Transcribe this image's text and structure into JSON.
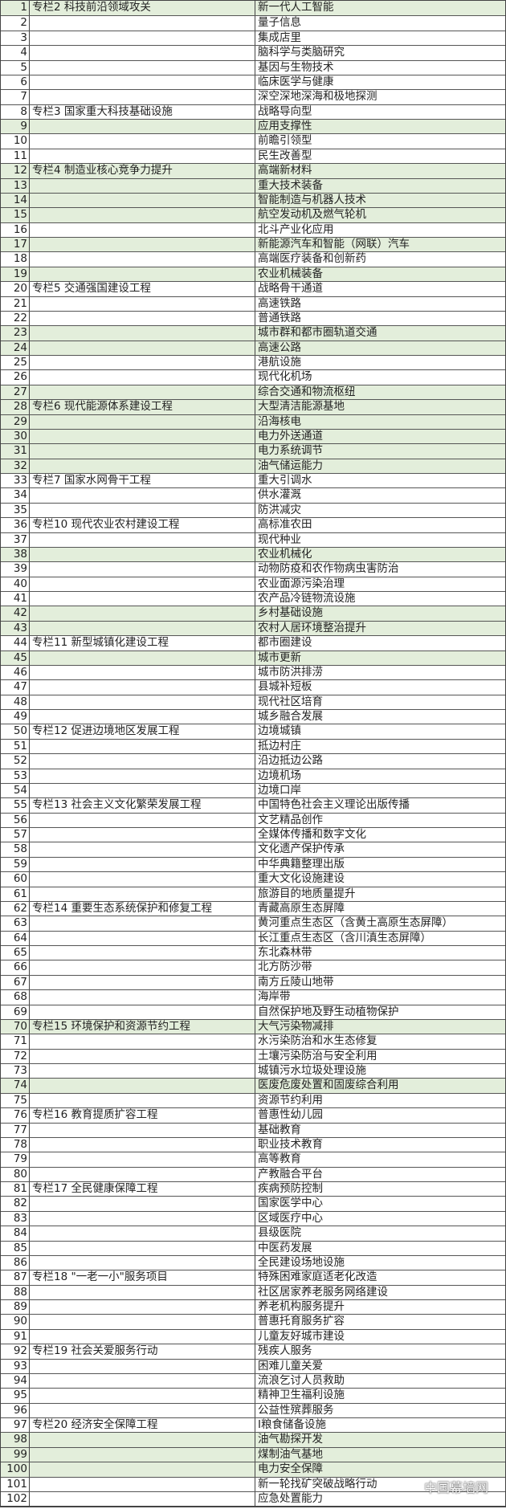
{
  "colors": {
    "highlight": "#e3eedb",
    "grid": "#444444"
  },
  "watermark": {
    "text": "中国幕墙网",
    "icon": "wechat-icon"
  },
  "rows": [
    {
      "n": "1",
      "b": "专栏2 科技前沿领域攻关",
      "c": "新一代人工智能",
      "hl": true
    },
    {
      "n": "2",
      "b": "",
      "c": "量子信息",
      "hl": false
    },
    {
      "n": "3",
      "b": "",
      "c": "集成店里",
      "hl": false
    },
    {
      "n": "4",
      "b": "",
      "c": "脑科学与类脑研究",
      "hl": false
    },
    {
      "n": "5",
      "b": "",
      "c": "基因与生物技术",
      "hl": false
    },
    {
      "n": "6",
      "b": "",
      "c": "临床医学与健康",
      "hl": false
    },
    {
      "n": "7",
      "b": "",
      "c": "深空深地深海和极地探测",
      "hl": false
    },
    {
      "n": "8",
      "b": "专栏3 国家重大科技基础设施",
      "c": "战略导向型",
      "hl": false
    },
    {
      "n": "9",
      "b": "",
      "c": "应用支撑性",
      "hl": true
    },
    {
      "n": "10",
      "b": "",
      "c": "前瞻引领型",
      "hl": false
    },
    {
      "n": "11",
      "b": "",
      "c": "民生改善型",
      "hl": false
    },
    {
      "n": "12",
      "b": "专栏4 制造业核心竞争力提升",
      "c": "高端新材料",
      "hl": true
    },
    {
      "n": "13",
      "b": "",
      "c": "重大技术装备",
      "hl": true
    },
    {
      "n": "14",
      "b": "",
      "c": "智能制造与机器人技术",
      "hl": true
    },
    {
      "n": "15",
      "b": "",
      "c": "航空发动机及燃气轮机",
      "hl": true
    },
    {
      "n": "16",
      "b": "",
      "c": "北斗产业化应用",
      "hl": false
    },
    {
      "n": "17",
      "b": "",
      "c": "新能源汽车和智能（网联）汽车",
      "hl": true
    },
    {
      "n": "18",
      "b": "",
      "c": "高端医疗装备和创新药",
      "hl": false
    },
    {
      "n": "19",
      "b": "",
      "c": "农业机械装备",
      "hl": true
    },
    {
      "n": "20",
      "b": "专栏5 交通强国建设工程",
      "c": "战略骨干通道",
      "hl": false
    },
    {
      "n": "21",
      "b": "",
      "c": "高速铁路",
      "hl": false
    },
    {
      "n": "22",
      "b": "",
      "c": "普通铁路",
      "hl": false
    },
    {
      "n": "23",
      "b": "",
      "c": "城市群和都市圈轨道交通",
      "hl": true
    },
    {
      "n": "24",
      "b": "",
      "c": "高速公路",
      "hl": true
    },
    {
      "n": "25",
      "b": "",
      "c": "港航设施",
      "hl": false
    },
    {
      "n": "26",
      "b": "",
      "c": "现代化机场",
      "hl": false
    },
    {
      "n": "27",
      "b": "",
      "c": "综合交通和物流枢纽",
      "hl": true
    },
    {
      "n": "28",
      "b": "专栏6 现代能源体系建设工程",
      "c": "大型清洁能源基地",
      "hl": true
    },
    {
      "n": "29",
      "b": "",
      "c": "沿海核电",
      "hl": true
    },
    {
      "n": "30",
      "b": "",
      "c": "电力外送通道",
      "hl": true
    },
    {
      "n": "31",
      "b": "",
      "c": "电力系统调节",
      "hl": true
    },
    {
      "n": "32",
      "b": "",
      "c": "油气储运能力",
      "hl": true
    },
    {
      "n": "33",
      "b": "专栏7 国家水网骨干工程",
      "c": "重大引调水",
      "hl": false
    },
    {
      "n": "34",
      "b": "",
      "c": "供水灌溉",
      "hl": false
    },
    {
      "n": "35",
      "b": "",
      "c": "防洪减灾",
      "hl": false
    },
    {
      "n": "36",
      "b": "专栏10 现代农业农村建设工程",
      "c": "高标准农田",
      "hl": false
    },
    {
      "n": "37",
      "b": "",
      "c": "现代种业",
      "hl": false
    },
    {
      "n": "38",
      "b": "",
      "c": "农业机械化",
      "hl": true
    },
    {
      "n": "39",
      "b": "",
      "c": "动物防疫和农作物病虫害防治",
      "hl": false
    },
    {
      "n": "40",
      "b": "",
      "c": "农业面源污染治理",
      "hl": false
    },
    {
      "n": "41",
      "b": "",
      "c": "农产品冷链物流设施",
      "hl": false
    },
    {
      "n": "42",
      "b": "",
      "c": "乡村基础设施",
      "hl": true
    },
    {
      "n": "43",
      "b": "",
      "c": "农村人居环境整治提升",
      "hl": true
    },
    {
      "n": "44",
      "b": "专栏11 新型城镇化建设工程",
      "c": "都市圈建设",
      "hl": false
    },
    {
      "n": "45",
      "b": "",
      "c": "城市更新",
      "hl": true
    },
    {
      "n": "46",
      "b": "",
      "c": "城市防洪排涝",
      "hl": false
    },
    {
      "n": "47",
      "b": "",
      "c": "县城补短板",
      "hl": false
    },
    {
      "n": "48",
      "b": "",
      "c": "现代社区培育",
      "hl": false
    },
    {
      "n": "49",
      "b": "",
      "c": "城乡融合发展",
      "hl": false
    },
    {
      "n": "50",
      "b": "专栏12 促进边境地区发展工程",
      "c": "边境城镇",
      "hl": false
    },
    {
      "n": "51",
      "b": "",
      "c": "抵边村庄",
      "hl": false
    },
    {
      "n": "52",
      "b": "",
      "c": "沿边抵边公路",
      "hl": false
    },
    {
      "n": "53",
      "b": "",
      "c": "边境机场",
      "hl": false
    },
    {
      "n": "54",
      "b": "",
      "c": "边境口岸",
      "hl": false
    },
    {
      "n": "55",
      "b": "专栏13 社会主义文化繁荣发展工程",
      "c": "中国特色社会主义理论出版传播",
      "hl": false
    },
    {
      "n": "56",
      "b": "",
      "c": "文艺精品创作",
      "hl": false
    },
    {
      "n": "57",
      "b": "",
      "c": "全媒体传播和数字文化",
      "hl": false
    },
    {
      "n": "58",
      "b": "",
      "c": "文化遗产保护传承",
      "hl": false
    },
    {
      "n": "59",
      "b": "",
      "c": "中华典籍整理出版",
      "hl": false
    },
    {
      "n": "60",
      "b": "",
      "c": "重大文化设施建设",
      "hl": false
    },
    {
      "n": "61",
      "b": "",
      "c": "旅游目的地质量提升",
      "hl": false
    },
    {
      "n": "62",
      "b": "专栏14 重要生态系统保护和修复工程",
      "c": "青藏高原生态屏障",
      "hl": false
    },
    {
      "n": "63",
      "b": "",
      "c": "黄河重点生态区（含黄土高原生态屏障）",
      "hl": false
    },
    {
      "n": "64",
      "b": "",
      "c": "长江重点生态区（含川滇生态屏障）",
      "hl": false
    },
    {
      "n": "65",
      "b": "",
      "c": "东北森林带",
      "hl": false
    },
    {
      "n": "66",
      "b": "",
      "c": "北方防沙带",
      "hl": false
    },
    {
      "n": "67",
      "b": "",
      "c": "南方丘陵山地带",
      "hl": false
    },
    {
      "n": "68",
      "b": "",
      "c": "海岸带",
      "hl": false
    },
    {
      "n": "69",
      "b": "",
      "c": "自然保护地及野生动植物保护",
      "hl": false
    },
    {
      "n": "70",
      "b": "专栏15 环境保护和资源节约工程",
      "c": "大气污染物减排",
      "hl": true
    },
    {
      "n": "71",
      "b": "",
      "c": "水污染防治和水生态修复",
      "hl": false
    },
    {
      "n": "72",
      "b": "",
      "c": "土壤污染防治与安全利用",
      "hl": false
    },
    {
      "n": "73",
      "b": "",
      "c": "城镇污水垃圾处理设施",
      "hl": false
    },
    {
      "n": "74",
      "b": "",
      "c": "医废危废处置和固废综合利用",
      "hl": true
    },
    {
      "n": "75",
      "b": "",
      "c": "资源节约利用",
      "hl": false
    },
    {
      "n": "76",
      "b": "专栏16 教育提质扩容工程",
      "c": "普惠性幼儿园",
      "hl": false
    },
    {
      "n": "77",
      "b": "",
      "c": "基础教育",
      "hl": false
    },
    {
      "n": "78",
      "b": "",
      "c": "职业技术教育",
      "hl": false
    },
    {
      "n": "79",
      "b": "",
      "c": "高等教育",
      "hl": false
    },
    {
      "n": "80",
      "b": "",
      "c": "产教融合平台",
      "hl": false
    },
    {
      "n": "81",
      "b": "专栏17 全民健康保障工程",
      "c": "疾病预防控制",
      "hl": false
    },
    {
      "n": "82",
      "b": "",
      "c": "国家医学中心",
      "hl": false
    },
    {
      "n": "83",
      "b": "",
      "c": "区域医疗中心",
      "hl": false
    },
    {
      "n": "84",
      "b": "",
      "c": "县级医院",
      "hl": false
    },
    {
      "n": "85",
      "b": "",
      "c": "中医药发展",
      "hl": false
    },
    {
      "n": "86",
      "b": "",
      "c": "全民建设场地设施",
      "hl": false
    },
    {
      "n": "87",
      "b": "专栏18 \"一老一小\"服务项目",
      "c": "特殊困难家庭适老化改造",
      "hl": false
    },
    {
      "n": "88",
      "b": "",
      "c": "社区居家养老服务网络建设",
      "hl": false
    },
    {
      "n": "89",
      "b": "",
      "c": "养老机构服务提升",
      "hl": false
    },
    {
      "n": "90",
      "b": "",
      "c": "普惠托育服务扩容",
      "hl": false
    },
    {
      "n": "91",
      "b": "",
      "c": "儿童友好城市建设",
      "hl": false
    },
    {
      "n": "92",
      "b": "专栏19 社会关爱服务行动",
      "c": "残疾人服务",
      "hl": false
    },
    {
      "n": "93",
      "b": "",
      "c": "困难儿童关爱",
      "hl": false
    },
    {
      "n": "94",
      "b": "",
      "c": "流浪乞讨人员救助",
      "hl": false
    },
    {
      "n": "95",
      "b": "",
      "c": "精神卫生福利设施",
      "hl": false
    },
    {
      "n": "96",
      "b": "",
      "c": "公益性殡葬服务",
      "hl": false
    },
    {
      "n": "97",
      "b": "专栏20 经济安全保障工程",
      "c": "I粮食储备设施",
      "hl": false
    },
    {
      "n": "98",
      "b": "",
      "c": "油气勘探开发",
      "hl": true
    },
    {
      "n": "99",
      "b": "",
      "c": "煤制油气基地",
      "hl": true
    },
    {
      "n": "100",
      "b": "",
      "c": "电力安全保障",
      "hl": true
    },
    {
      "n": "101",
      "b": "",
      "c": "新一轮找矿突破战略行动",
      "hl": false
    },
    {
      "n": "102",
      "b": "",
      "c": "应急处置能力",
      "hl": false
    }
  ]
}
